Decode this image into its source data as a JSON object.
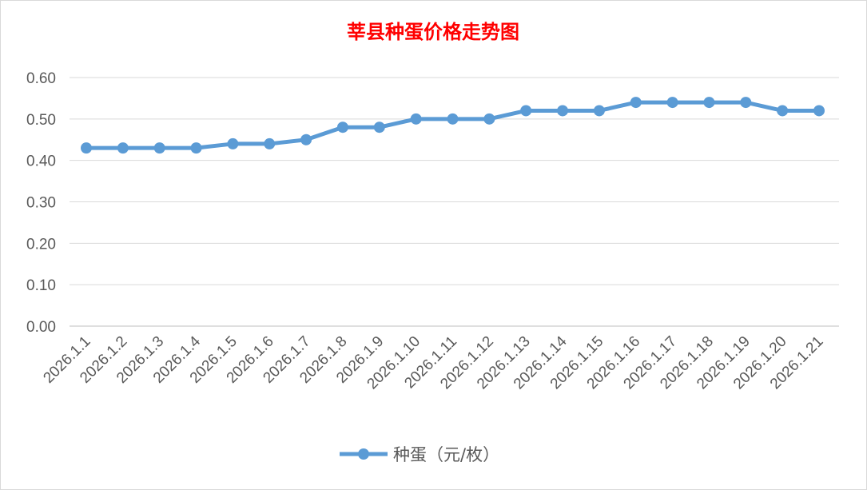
{
  "chart_data": {
    "type": "line",
    "title": "莘县种蛋价格走势图",
    "xlabel": "",
    "ylabel": "",
    "categories": [
      "2026.1.1",
      "2026.1.2",
      "2026.1.3",
      "2026.1.4",
      "2026.1.5",
      "2026.1.6",
      "2026.1.7",
      "2026.1.8",
      "2026.1.9",
      "2026.1.10",
      "2026.1.11",
      "2026.1.12",
      "2026.1.13",
      "2026.1.14",
      "2026.1.15",
      "2026.1.16",
      "2026.1.17",
      "2026.1.18",
      "2026.1.19",
      "2026.1.20",
      "2026.1.21"
    ],
    "series": [
      {
        "name": "种蛋（元/枚）",
        "color": "#5b9bd5",
        "values": [
          0.43,
          0.43,
          0.43,
          0.43,
          0.44,
          0.44,
          0.45,
          0.48,
          0.48,
          0.5,
          0.5,
          0.5,
          0.52,
          0.52,
          0.52,
          0.54,
          0.54,
          0.54,
          0.54,
          0.52,
          0.52
        ]
      }
    ],
    "ylim": [
      0,
      0.6
    ],
    "yticks": [
      "0.00",
      "0.10",
      "0.20",
      "0.30",
      "0.40",
      "0.50",
      "0.60"
    ],
    "grid": true,
    "legend": "bottom",
    "title_color": "#ff0000"
  }
}
